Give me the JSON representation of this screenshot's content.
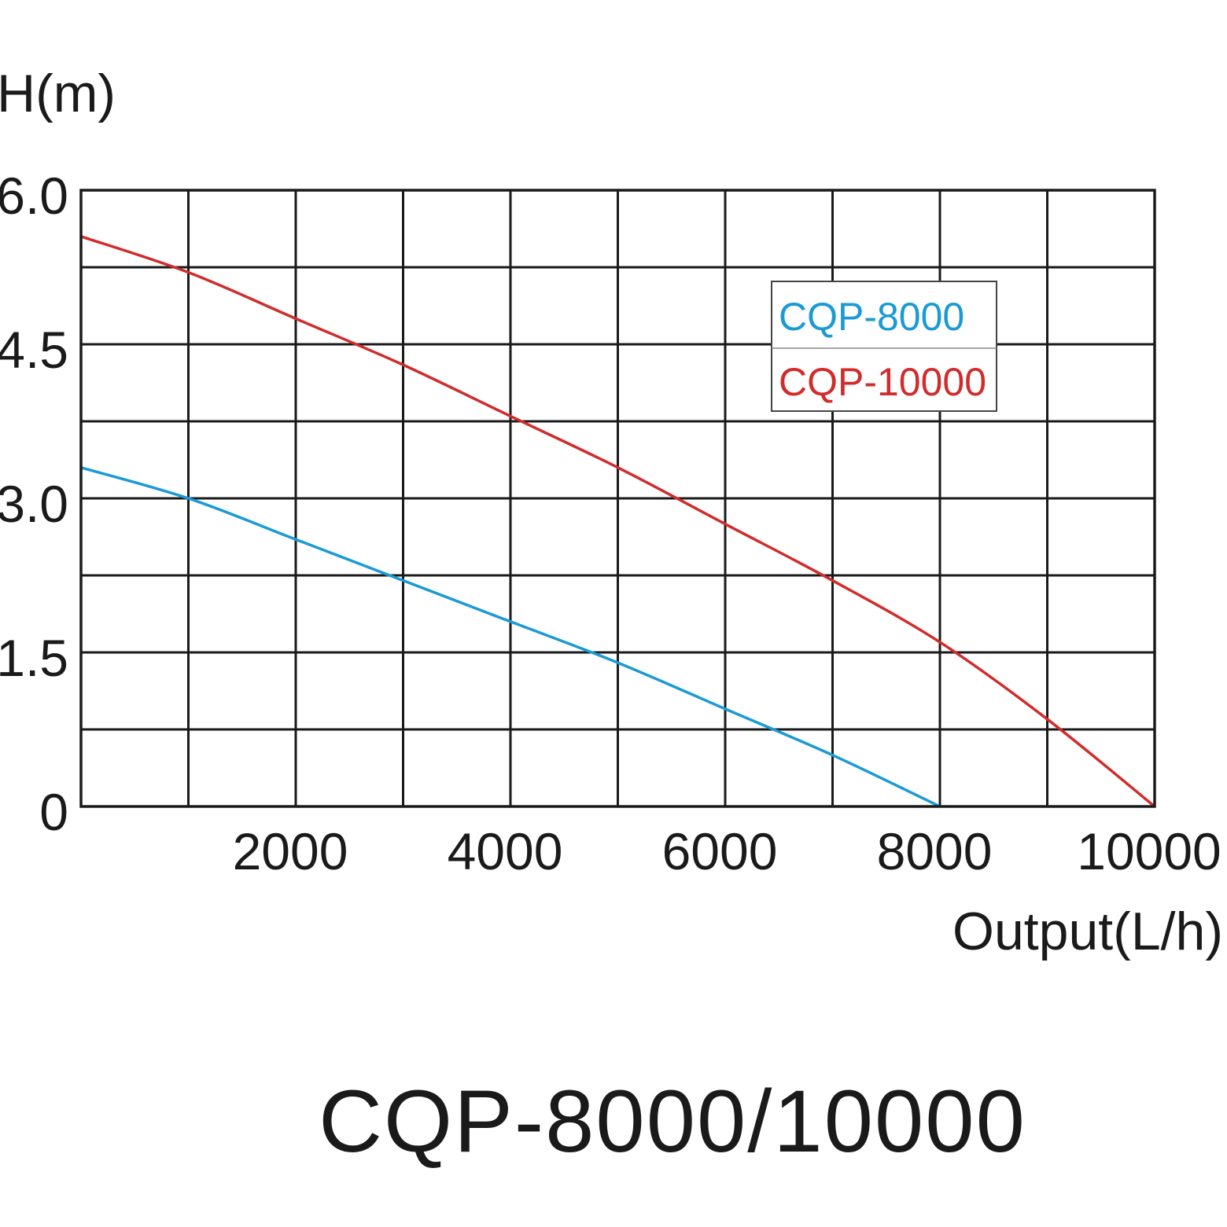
{
  "chart_data": {
    "type": "line",
    "title": "CQP-8000/10000",
    "xlabel": "Output(L/h)",
    "ylabel": "H(m)",
    "xlim": [
      0,
      10000
    ],
    "ylim": [
      0,
      6.0
    ],
    "x_ticks": [
      2000,
      4000,
      6000,
      8000,
      10000
    ],
    "x_tick_labels": [
      "2000",
      "4000",
      "6000",
      "8000",
      "10000"
    ],
    "y_ticks": [
      0,
      1.5,
      3.0,
      4.5,
      6.0
    ],
    "y_tick_labels": [
      "0",
      "1.5",
      "3.0",
      "4.5",
      "6.0"
    ],
    "grid": true,
    "legend_position": "top-right",
    "series": [
      {
        "name": "CQP-8000",
        "color": "#1b9ad6",
        "x": [
          0,
          1000,
          2000,
          3000,
          4000,
          5000,
          6000,
          7000,
          8000
        ],
        "y": [
          3.3,
          3.0,
          2.6,
          2.2,
          1.8,
          1.4,
          0.95,
          0.5,
          0.0
        ]
      },
      {
        "name": "CQP-10000",
        "color": "#d22b2b",
        "x": [
          0,
          1000,
          2000,
          3000,
          4000,
          5000,
          6000,
          7000,
          8000,
          9000,
          10000
        ],
        "y": [
          5.55,
          5.2,
          4.75,
          4.3,
          3.8,
          3.3,
          2.75,
          2.2,
          1.6,
          0.85,
          0.0
        ]
      }
    ]
  }
}
